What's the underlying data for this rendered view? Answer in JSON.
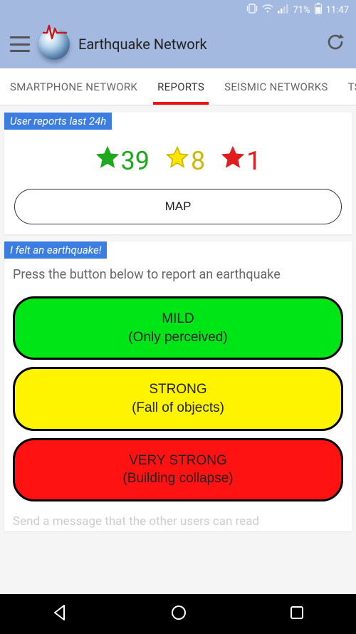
{
  "status": {
    "battery": "71%",
    "time": "11:47"
  },
  "app": {
    "title": "Earthquake Network"
  },
  "tabs": {
    "items": [
      {
        "label": "SMARTPHONE NETWORK"
      },
      {
        "label": "REPORTS"
      },
      {
        "label": "SEISMIC NETWORKS"
      },
      {
        "label": "TS"
      }
    ],
    "active_index": 1,
    "indicator_color": "#e11"
  },
  "reports_card": {
    "label": "User reports last 24h",
    "stars": [
      {
        "color_fill": "#1da81d",
        "color_stroke": "#1da81d",
        "count": "39",
        "count_color": "#1da81d"
      },
      {
        "color_fill": "#ffe400",
        "color_stroke": "#d0b800",
        "count": "8",
        "count_color": "#d0b800"
      },
      {
        "color_fill": "#e21c1c",
        "color_stroke": "#e21c1c",
        "count": "1",
        "count_color": "#e21c1c"
      }
    ],
    "map_button": "MAP"
  },
  "felt_card": {
    "label": "I felt an earthquake!",
    "instruction": "Press the button below to report an earthquake",
    "buttons": [
      {
        "title": "MILD",
        "subtitle": "(Only perceived)",
        "bg": "#00e516"
      },
      {
        "title": "STRONG",
        "subtitle": "(Fall of objects)",
        "bg": "#fff400"
      },
      {
        "title": "VERY STRONG",
        "subtitle": "(Building collapse)",
        "bg": "#ff1212"
      }
    ],
    "footer": "Send a message that the other users can read"
  },
  "colors": {
    "header_bg": "#a3b9e0",
    "section_label_bg": "#3b7de0"
  }
}
